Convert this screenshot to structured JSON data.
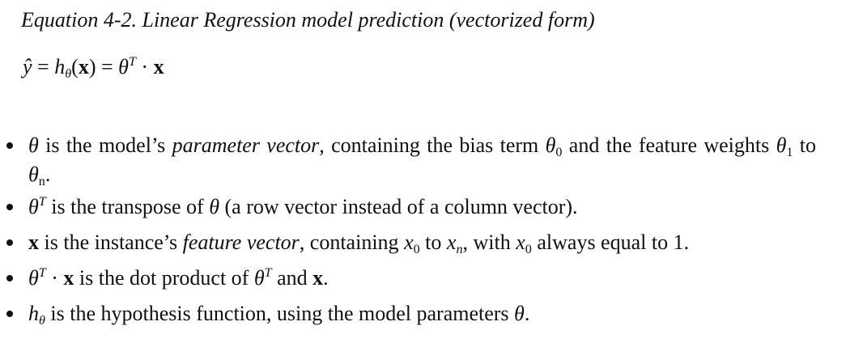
{
  "caption": "Equation 4-2. Linear Regression model prediction (vectorized form)",
  "equation": {
    "y_hat": "ŷ",
    "equals1": " = ",
    "h": "h",
    "h_sub": "θ",
    "paren_open": "(",
    "x": "x",
    "paren_close": ")",
    "equals2": " = ",
    "theta": "θ",
    "theta_sup": "T",
    "dot": " · ",
    "x2": "x"
  },
  "bullets": {
    "b1": {
      "theta": "θ",
      "t1": " is the model’s ",
      "em": "parameter vector",
      "t2": ", containing the bias term ",
      "theta0": "θ",
      "sub0": "0",
      "t3": " and the feature weights ",
      "theta1": "θ",
      "sub1": "1",
      "t4": " to ",
      "thetan": "θ",
      "subn": "n",
      "t5": "."
    },
    "b2": {
      "theta": "θ",
      "sup": "T",
      "t1": " is the transpose of ",
      "theta2": "θ",
      "t2": " (a row vector instead of a column vector)."
    },
    "b3": {
      "x": "x",
      "t1": " is the instance’s ",
      "em": "feature vector",
      "t2": ", containing ",
      "x0": "x",
      "sub0": "0",
      "t3": " to ",
      "xn": "x",
      "subn": "n",
      "t4": ", with ",
      "x0b": "x",
      "sub0b": "0",
      "t5": " always equal to 1."
    },
    "b4": {
      "theta": "θ",
      "sup": "T",
      "dot": " · ",
      "x": "x",
      "t1": " is the dot product of ",
      "theta2": "θ",
      "sup2": "T",
      "t2": " and ",
      "x2": "x",
      "t3": "."
    },
    "b5": {
      "h": "h",
      "sub": "θ",
      "t1": " is the hypothesis function, using the model parameters ",
      "theta": "θ",
      "t2": "."
    }
  }
}
